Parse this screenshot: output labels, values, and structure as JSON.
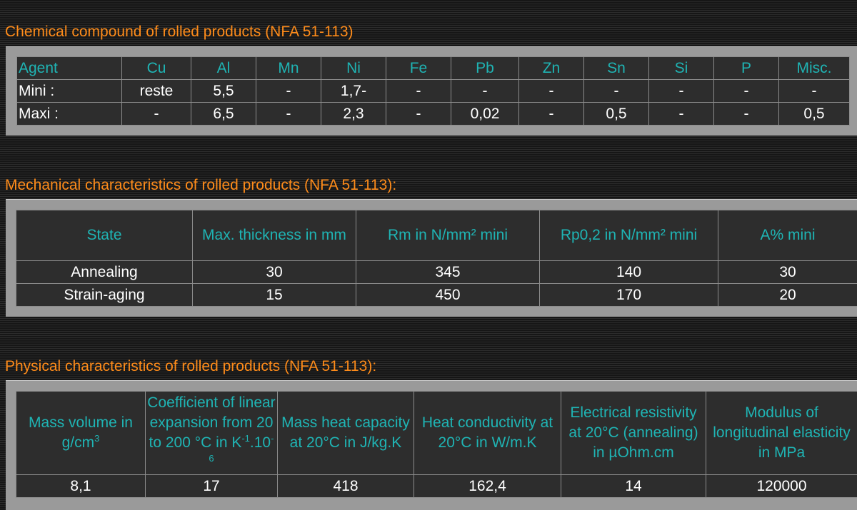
{
  "chemical": {
    "title": "Chemical compound of rolled products (NFA 51-113)",
    "headers": [
      "Agent",
      "Cu",
      "Al",
      "Mn",
      "Ni",
      "Fe",
      "Pb",
      "Zn",
      "Sn",
      "Si",
      "P",
      "Misc."
    ],
    "rows": [
      [
        "Mini :",
        "reste",
        "5,5",
        "-",
        "1,7-",
        "-",
        "-",
        "-",
        "-",
        "-",
        "-",
        "-"
      ],
      [
        "Maxi :",
        "-",
        "6,5",
        "-",
        "2,3",
        "-",
        "0,02",
        "-",
        "0,5",
        "-",
        "-",
        "0,5"
      ]
    ]
  },
  "mechanical": {
    "title": "Mechanical characteristics of rolled products (NFA 51-113):",
    "headers": [
      "State",
      "Max. thickness in mm",
      "Rm in N/mm² mini",
      "Rp0,2 in N/mm² mini",
      "A% mini"
    ],
    "rows": [
      [
        "Annealing",
        "30",
        "345",
        "140",
        "30"
      ],
      [
        "Strain-aging",
        "15",
        "450",
        "170",
        "20"
      ]
    ]
  },
  "physical": {
    "title": "Physical characteristics of rolled products (NFA 51-113):",
    "headers": {
      "mass_volume": "Mass volume in g/cm",
      "mass_volume_sup": "3",
      "coef_a": "Coefficient of linear expansion from 20 to 200 °C in K",
      "coef_sup1": "-1",
      "coef_b": ".10",
      "coef_sup2": "-6",
      "mass_heat": "Mass heat capacity at 20°C in J/kg.K",
      "heat_cond": "Heat conductivity at 20°C in W/m.K",
      "resistivity": "Electrical resistivity at 20°C (annealing) in µOhm.cm",
      "modulus": "Modulus of longitudinal elasticity in MPa"
    },
    "row": [
      "8,1",
      "17",
      "418",
      "162,4",
      "14",
      "120000"
    ]
  },
  "colors": {
    "title_orange": "#ff8c1a",
    "header_teal": "#1fb4b4",
    "panel_grey": "#9a9a9a",
    "table_bg": "#2d2d2d"
  }
}
